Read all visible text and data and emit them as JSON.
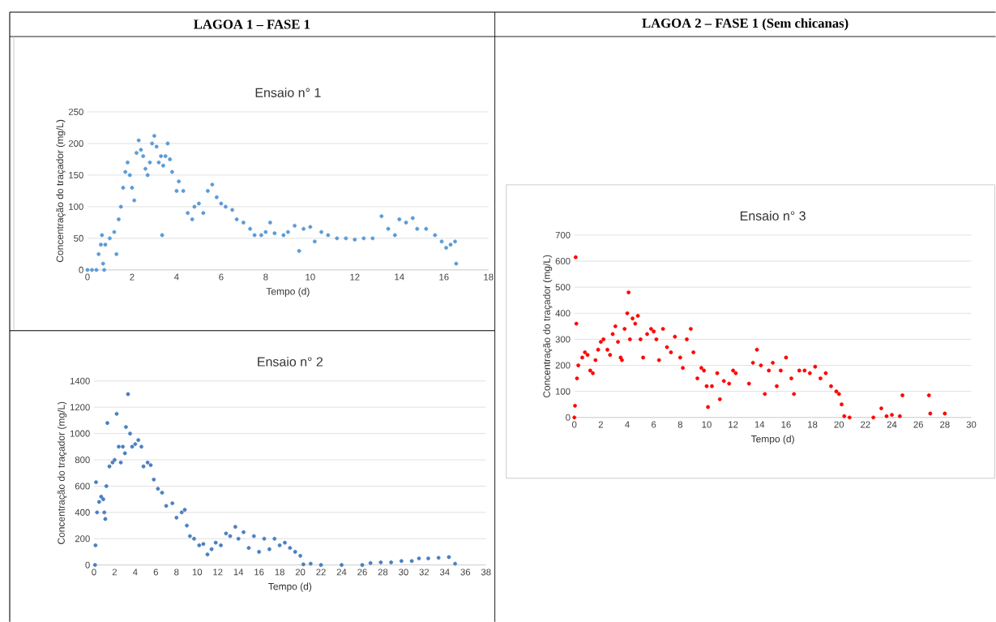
{
  "chart_data": [
    {
      "type": "scatter",
      "title": "Ensaio n° 1",
      "xlabel": "Tempo (d)",
      "ylabel": "Concentração do traçador (mg/L)",
      "annotations": [
        "LAGOA 1 – FASE 1"
      ],
      "color": "#5b9bd5",
      "marker": "circle",
      "grid": "y",
      "xlim": [
        0,
        18
      ],
      "ylim": [
        0,
        250
      ],
      "xticks": [
        0,
        2,
        4,
        6,
        8,
        10,
        12,
        14,
        16,
        18
      ],
      "yticks": [
        0,
        50,
        100,
        150,
        200,
        250
      ],
      "x": [
        0,
        0.2,
        0.4,
        0.5,
        0.6,
        0.65,
        0.7,
        0.75,
        0.8,
        1.0,
        1.2,
        1.3,
        1.4,
        1.5,
        1.6,
        1.7,
        1.8,
        1.9,
        2.0,
        2.1,
        2.2,
        2.3,
        2.4,
        2.5,
        2.6,
        2.7,
        2.8,
        2.9,
        3.0,
        3.1,
        3.2,
        3.3,
        3.35,
        3.4,
        3.5,
        3.6,
        3.7,
        3.8,
        4.0,
        4.1,
        4.3,
        4.5,
        4.7,
        4.8,
        5.0,
        5.2,
        5.4,
        5.6,
        5.8,
        6.0,
        6.2,
        6.5,
        6.7,
        7.0,
        7.3,
        7.5,
        7.8,
        8.0,
        8.2,
        8.4,
        8.8,
        9.0,
        9.3,
        9.5,
        9.7,
        10.0,
        10.2,
        10.5,
        10.8,
        11.2,
        11.6,
        12.0,
        12.4,
        12.8,
        13.2,
        13.5,
        13.8,
        14.0,
        14.3,
        14.6,
        14.8,
        15.2,
        15.6,
        15.9,
        16.1,
        16.3,
        16.5,
        16.55
      ],
      "values": [
        0,
        0,
        0,
        25,
        40,
        55,
        10,
        0,
        40,
        50,
        60,
        25,
        80,
        100,
        130,
        155,
        170,
        150,
        130,
        110,
        185,
        205,
        190,
        180,
        160,
        150,
        170,
        200,
        212,
        195,
        170,
        180,
        55,
        165,
        180,
        200,
        175,
        155,
        125,
        140,
        125,
        90,
        80,
        100,
        105,
        90,
        125,
        135,
        115,
        105,
        100,
        95,
        80,
        75,
        65,
        55,
        55,
        60,
        75,
        58,
        55,
        60,
        70,
        30,
        65,
        68,
        45,
        60,
        55,
        50,
        50,
        48,
        50,
        50,
        85,
        65,
        55,
        80,
        75,
        82,
        65,
        65,
        55,
        45,
        35,
        40,
        45,
        10
      ]
    },
    {
      "type": "scatter",
      "title": "Ensaio n° 2",
      "xlabel": "Tempo (d)",
      "ylabel": "Concentração do traçador (mg/L)",
      "color": "#4a7fc1",
      "marker": "circle",
      "grid": "y",
      "xlim": [
        0,
        38
      ],
      "ylim": [
        0,
        1400
      ],
      "xticks": [
        0,
        2,
        4,
        6,
        8,
        10,
        12,
        14,
        16,
        18,
        20,
        22,
        24,
        26,
        28,
        30,
        32,
        34,
        36,
        38
      ],
      "yticks": [
        0,
        200,
        400,
        600,
        800,
        1000,
        1200,
        1400
      ],
      "x": [
        0.1,
        0.15,
        0.2,
        0.3,
        0.5,
        0.7,
        0.9,
        1.0,
        1.1,
        1.2,
        1.3,
        1.5,
        1.8,
        2.0,
        2.2,
        2.4,
        2.6,
        2.8,
        3.0,
        3.1,
        3.3,
        3.5,
        3.7,
        4.0,
        4.3,
        4.6,
        4.8,
        5.2,
        5.5,
        5.8,
        6.2,
        6.6,
        7.0,
        7.6,
        8.0,
        8.5,
        8.8,
        9.0,
        9.3,
        9.7,
        10.2,
        10.6,
        11.0,
        11.4,
        11.8,
        12.3,
        12.8,
        13.2,
        13.7,
        14.0,
        14.5,
        15.0,
        15.5,
        16.0,
        16.5,
        17.0,
        17.5,
        18.0,
        18.5,
        19.0,
        19.5,
        20.0,
        20.3,
        21.0,
        22,
        24,
        26,
        26.8,
        27.8,
        28.8,
        29.8,
        30.8,
        31.5,
        32.4,
        33.4,
        34.4,
        35.0
      ],
      "values": [
        0,
        150,
        630,
        400,
        480,
        520,
        500,
        400,
        350,
        600,
        1080,
        750,
        780,
        800,
        1150,
        900,
        780,
        900,
        850,
        1050,
        1300,
        1000,
        900,
        920,
        950,
        900,
        750,
        780,
        760,
        650,
        580,
        550,
        450,
        470,
        360,
        400,
        420,
        300,
        220,
        200,
        150,
        160,
        80,
        120,
        170,
        150,
        240,
        220,
        290,
        200,
        250,
        130,
        220,
        100,
        200,
        120,
        200,
        150,
        170,
        130,
        100,
        70,
        5,
        10,
        0,
        0,
        0,
        15,
        20,
        20,
        30,
        30,
        50,
        50,
        55,
        60,
        10
      ]
    },
    {
      "type": "scatter",
      "title": "Ensaio n° 3",
      "xlabel": "Tempo (d)",
      "ylabel": "Concentração do traçador (mg/L)",
      "annotations": [
        "LAGOA 2 – FASE 1 (Sem chicanas)"
      ],
      "color": "#ff0000",
      "marker": "circle",
      "grid": "y",
      "xlim": [
        0,
        30
      ],
      "ylim": [
        0,
        700
      ],
      "xticks": [
        0,
        2,
        4,
        6,
        8,
        10,
        12,
        14,
        16,
        18,
        20,
        22,
        24,
        26,
        28,
        30
      ],
      "yticks": [
        0,
        100,
        200,
        300,
        400,
        500,
        600,
        700
      ],
      "x": [
        0,
        0.05,
        0.1,
        0.15,
        0.2,
        0.3,
        0.6,
        0.8,
        1.0,
        1.2,
        1.4,
        1.6,
        1.8,
        2.0,
        2.2,
        2.5,
        2.7,
        2.9,
        3.1,
        3.3,
        3.5,
        3.6,
        3.8,
        4.0,
        4.1,
        4.2,
        4.4,
        4.6,
        4.8,
        5.0,
        5.2,
        5.5,
        5.8,
        6.0,
        6.2,
        6.4,
        6.7,
        7.0,
        7.3,
        7.6,
        8.0,
        8.2,
        8.5,
        8.8,
        9.0,
        9.3,
        9.6,
        9.8,
        10.0,
        10.1,
        10.4,
        10.8,
        11.0,
        11.3,
        11.7,
        12.0,
        12.2,
        13.2,
        13.5,
        13.8,
        14.1,
        14.4,
        14.7,
        15.0,
        15.3,
        15.6,
        16.0,
        16.4,
        16.6,
        17.0,
        17.4,
        17.8,
        18.2,
        18.6,
        19.0,
        19.4,
        19.8,
        20.0,
        20.2,
        20.4,
        20.8,
        22.6,
        23.2,
        23.6,
        24.0,
        24.6,
        24.8,
        26.8,
        26.9,
        28.0
      ],
      "values": [
        0,
        45,
        615,
        360,
        150,
        200,
        230,
        250,
        240,
        180,
        170,
        220,
        260,
        290,
        300,
        260,
        240,
        320,
        350,
        290,
        230,
        220,
        340,
        400,
        480,
        300,
        380,
        360,
        390,
        300,
        230,
        320,
        340,
        330,
        300,
        220,
        340,
        270,
        250,
        310,
        230,
        190,
        300,
        340,
        250,
        150,
        190,
        180,
        120,
        40,
        120,
        170,
        70,
        140,
        130,
        180,
        170,
        130,
        210,
        260,
        200,
        90,
        180,
        210,
        120,
        180,
        230,
        150,
        90,
        180,
        180,
        170,
        195,
        150,
        170,
        120,
        100,
        90,
        50,
        5,
        0,
        0,
        35,
        5,
        10,
        5,
        85,
        85,
        15,
        15
      ]
    }
  ]
}
